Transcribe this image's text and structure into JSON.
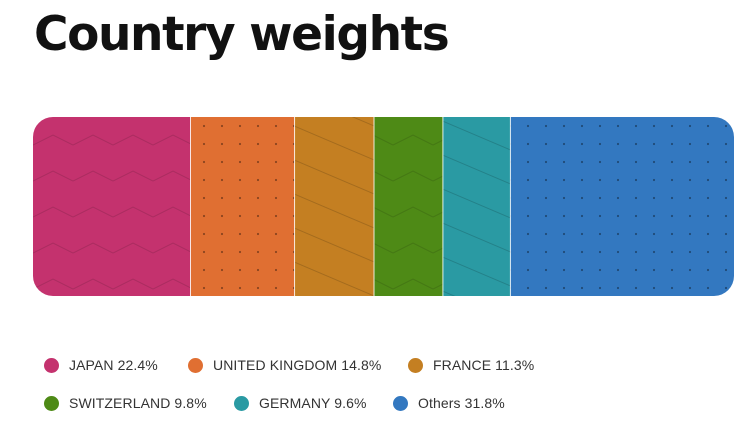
{
  "header": {
    "title": "Country weights"
  },
  "colors": {
    "JAPAN": "#c4326e",
    "UNITED KINGDOM": "#e06f32",
    "FRANCE": "#c47f22",
    "SWITZERLAND": "#4e8a16",
    "GERMANY": "#2a9aa3",
    "Others": "#3378c0"
  },
  "chart_data": {
    "type": "bar",
    "orientation": "horizontal-stacked-100",
    "title": "Country weights",
    "unit": "%",
    "categories": [
      "JAPAN",
      "UNITED KINGDOM",
      "FRANCE",
      "SWITZERLAND",
      "GERMANY",
      "Others"
    ],
    "values": [
      22.4,
      14.8,
      11.3,
      9.8,
      9.6,
      31.8
    ],
    "patterns": [
      "zigzag",
      "dots",
      "diagonal",
      "zigzag",
      "diagonal",
      "dots"
    ],
    "legend_position": "bottom",
    "grid": false
  },
  "legend": {
    "items": [
      {
        "label": "JAPAN 22.4%"
      },
      {
        "label": "UNITED KINGDOM 14.8%"
      },
      {
        "label": "FRANCE 11.3%"
      },
      {
        "label": "SWITZERLAND 9.8%"
      },
      {
        "label": "GERMANY 9.6%"
      },
      {
        "label": "Others 31.8%"
      }
    ]
  }
}
